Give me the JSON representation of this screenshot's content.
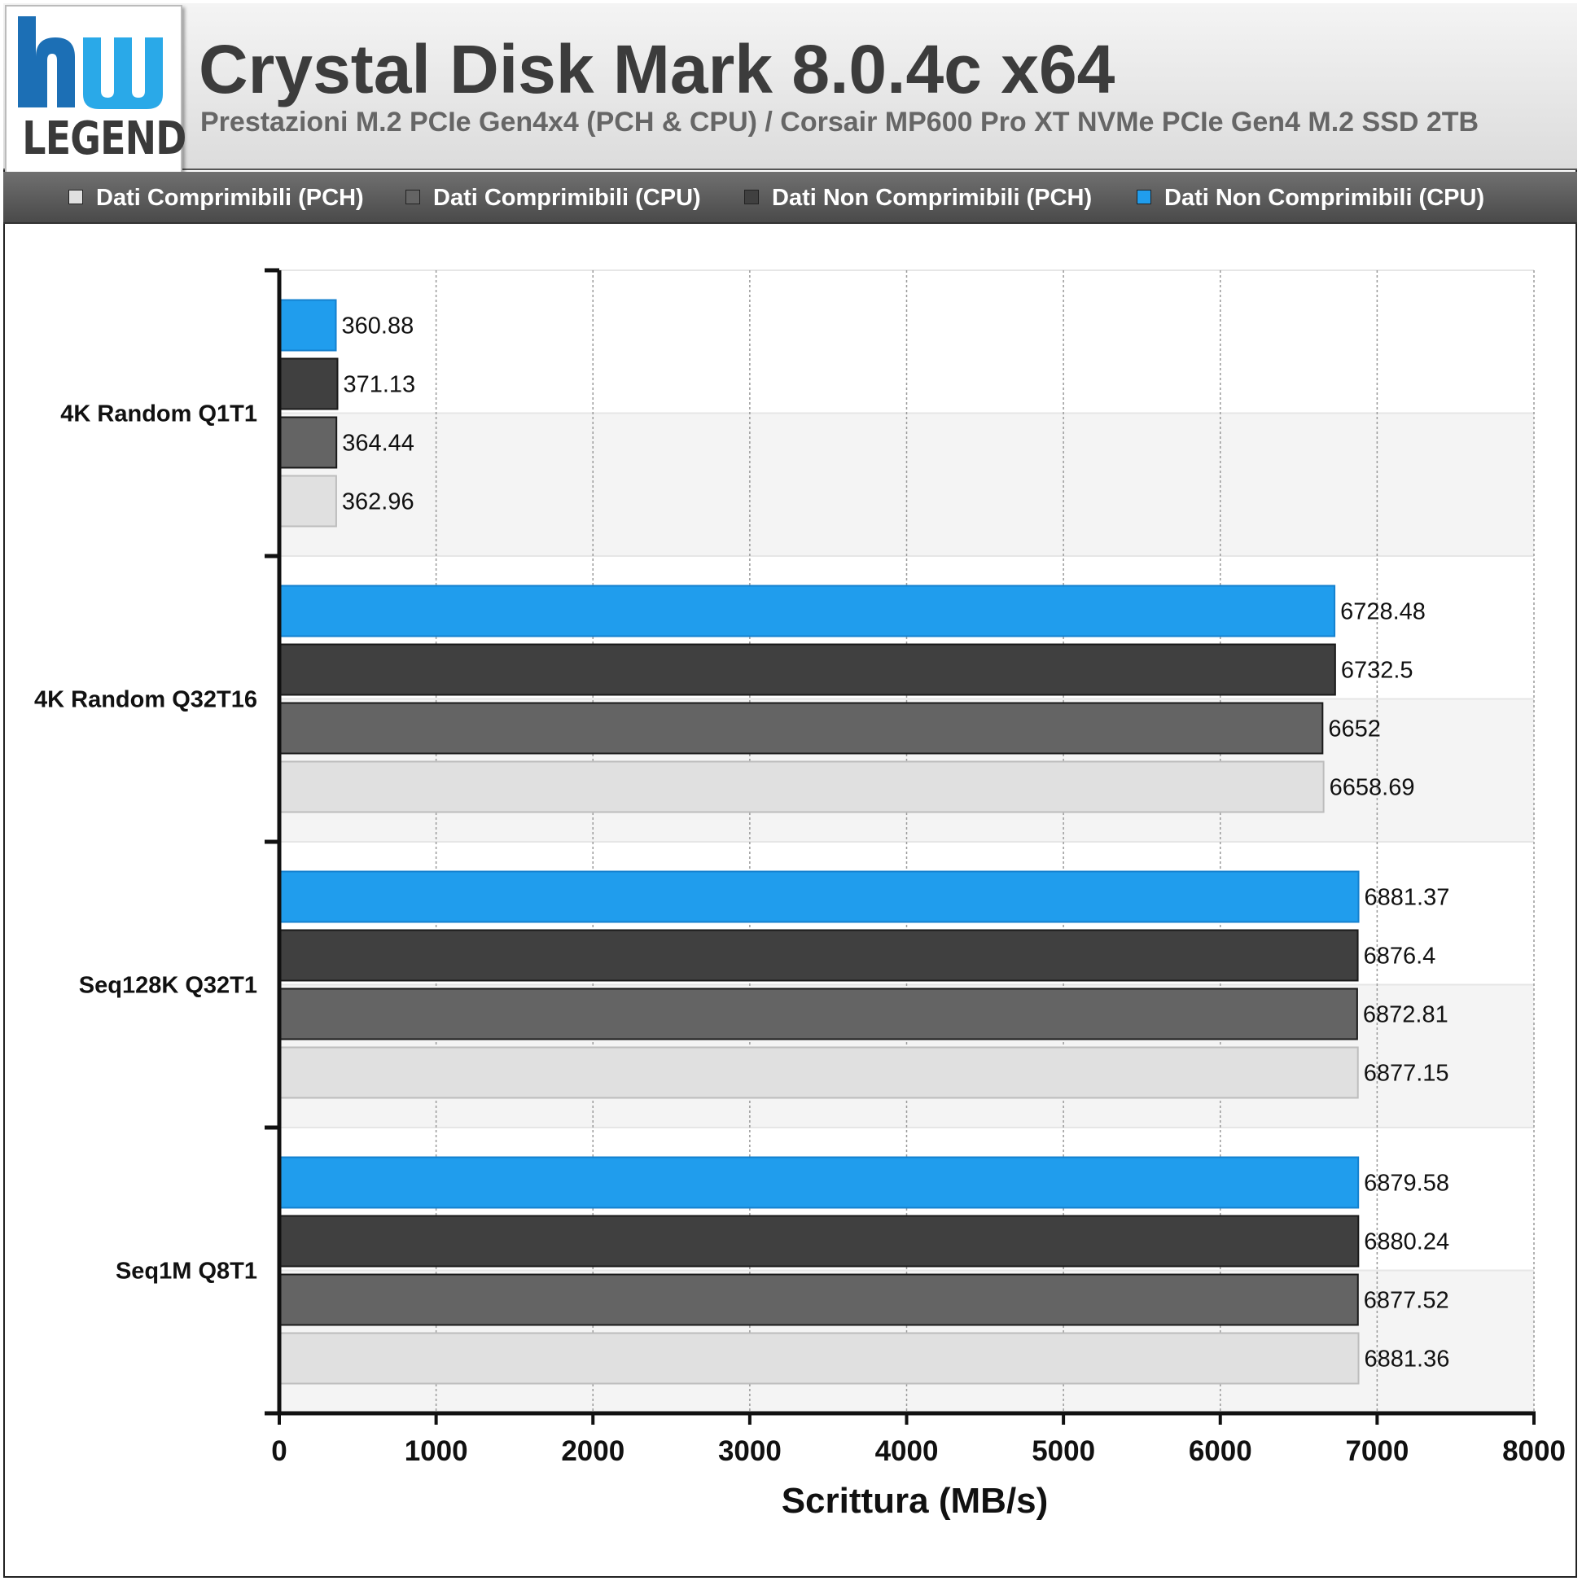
{
  "header": {
    "title": "Crystal Disk Mark 8.0.4c x64",
    "subtitle": "Prestazioni M.2 PCIe Gen4x4 (PCH & CPU) / Corsair MP600 Pro XT NVMe PCIe Gen4 M.2 SSD 2TB"
  },
  "logo": {
    "word": "LEGEND",
    "mark": "hw"
  },
  "legend": [
    {
      "label": "Dati Comprimibili (PCH)",
      "color": "#e0e0e0"
    },
    {
      "label": "Dati Comprimibili (CPU)",
      "color": "#646464"
    },
    {
      "label": "Dati Non Comprimibili (PCH)",
      "color": "#404040"
    },
    {
      "label": "Dati Non Comprimibili (CPU)",
      "color": "#209ded"
    }
  ],
  "chart_data": {
    "type": "bar",
    "orientation": "horizontal",
    "categories": [
      "4K Random Q1T1",
      "4K Random Q32T16",
      "Seq128K Q32T1",
      "Seq1M Q8T1"
    ],
    "series": [
      {
        "name": "Dati Non Comprimibili (CPU)",
        "color": "#209ded",
        "values": [
          360.88,
          6728.48,
          6881.37,
          6879.58
        ],
        "labels": [
          "360.88",
          "6728.48",
          "6881.37",
          "6879.58"
        ]
      },
      {
        "name": "Dati Non Comprimibili (PCH)",
        "color": "#404040",
        "values": [
          371.13,
          6732.5,
          6876.4,
          6880.24
        ],
        "labels": [
          "371.13",
          "6732.5",
          "6876.4",
          "6880.24"
        ]
      },
      {
        "name": "Dati Comprimibili (CPU)",
        "color": "#646464",
        "values": [
          364.44,
          6652,
          6872.81,
          6877.52
        ],
        "labels": [
          "364.44",
          "6652",
          "6872.81",
          "6877.52"
        ]
      },
      {
        "name": "Dati Comprimibili (PCH)",
        "color": "#e0e0e0",
        "values": [
          362.96,
          6658.69,
          6877.15,
          6881.36
        ],
        "labels": [
          "362.96",
          "6658.69",
          "6877.15",
          "6881.36"
        ]
      }
    ],
    "xlabel": "Scrittura (MB/s)",
    "xlim": [
      0,
      8000
    ],
    "xticks": [
      "0",
      "1000",
      "2000",
      "3000",
      "4000",
      "5000",
      "6000",
      "7000",
      "8000"
    ],
    "grid": true,
    "legend_position": "top"
  }
}
